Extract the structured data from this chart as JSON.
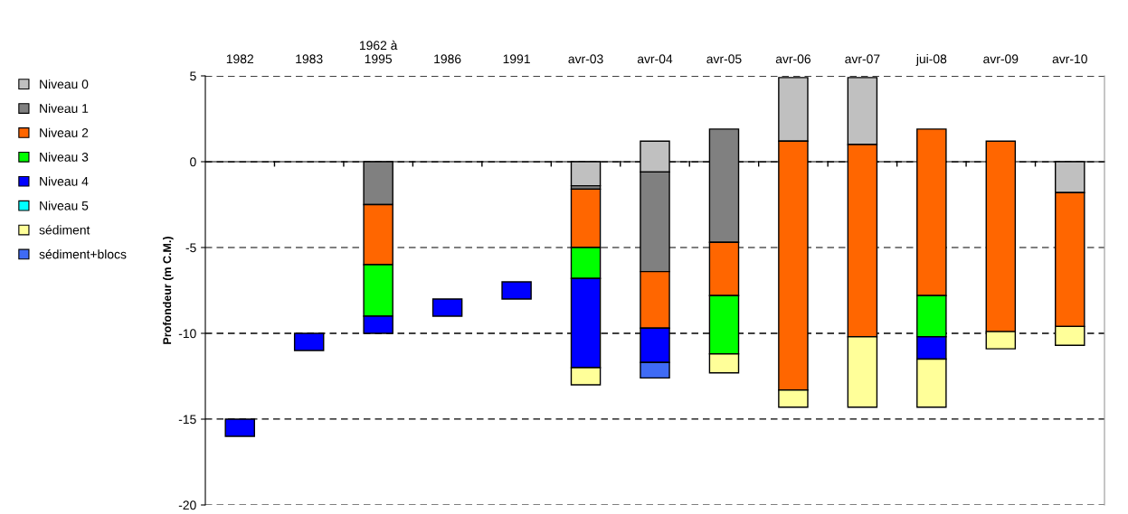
{
  "chart_data": {
    "type": "bar",
    "ylabel": "Profondeur (m C.M.)",
    "categories": [
      "1982",
      "1983",
      "1962 à\n1995",
      "1986",
      "1991",
      "avr-03",
      "avr-04",
      "avr-05",
      "avr-06",
      "avr-07",
      "jui-08",
      "avr-09",
      "avr-10"
    ],
    "series": [
      {
        "name": "Niveau 0",
        "color": "#c0c0c0",
        "base": [
          null,
          null,
          null,
          null,
          null,
          -1.4,
          -0.6,
          null,
          1.2,
          1.0,
          null,
          null,
          -1.8
        ],
        "values": [
          null,
          null,
          null,
          null,
          null,
          1.4,
          1.8,
          null,
          3.7,
          3.9,
          null,
          null,
          1.8
        ]
      },
      {
        "name": "Niveau 1",
        "color": "#808080",
        "base": [
          null,
          null,
          -2.5,
          null,
          null,
          -1.6,
          -6.4,
          -4.7,
          null,
          null,
          null,
          null,
          null
        ],
        "values": [
          null,
          null,
          2.5,
          null,
          null,
          0.2,
          5.8,
          6.6,
          null,
          null,
          null,
          null,
          null
        ]
      },
      {
        "name": "Niveau 2",
        "color": "#ff6600",
        "base": [
          null,
          null,
          -6,
          null,
          null,
          -5,
          -9.7,
          -7.8,
          -13.3,
          -10.2,
          -7.8,
          -9.9,
          -9.6
        ],
        "values": [
          null,
          null,
          3.5,
          null,
          null,
          3.4,
          3.3,
          3.1,
          14.5,
          11.2,
          9.7,
          11.1,
          7.8
        ]
      },
      {
        "name": "Niveau 3",
        "color": "#00ff00",
        "base": [
          null,
          null,
          -9,
          null,
          null,
          -6.8,
          null,
          -11.2,
          null,
          null,
          -10.2,
          null,
          null
        ],
        "values": [
          null,
          null,
          3,
          null,
          null,
          1.8,
          null,
          3.4,
          null,
          null,
          2.4,
          null,
          null
        ]
      },
      {
        "name": "Niveau 4",
        "color": "#0000ff",
        "base": [
          -16,
          -11,
          -10,
          -9,
          -8,
          -12,
          -11.7,
          null,
          null,
          null,
          -11.5,
          null,
          null
        ],
        "values": [
          1,
          1,
          1,
          1,
          1,
          5.2,
          2,
          null,
          null,
          null,
          1.3,
          null,
          null
        ]
      },
      {
        "name": "Niveau 5",
        "color": "#00ffff",
        "base": [
          null,
          null,
          null,
          null,
          null,
          null,
          null,
          null,
          null,
          null,
          null,
          null,
          null
        ],
        "values": [
          null,
          null,
          null,
          null,
          null,
          null,
          null,
          null,
          null,
          null,
          null,
          null,
          null
        ]
      },
      {
        "name": "sédiment",
        "color": "#ffff99",
        "base": [
          null,
          null,
          null,
          null,
          null,
          -13,
          null,
          -12.3,
          -14.3,
          -14.3,
          -14.3,
          -10.9,
          -10.7
        ],
        "values": [
          null,
          null,
          null,
          null,
          null,
          1,
          null,
          1.1,
          1,
          4.1,
          2.8,
          1,
          1.1
        ]
      },
      {
        "name": "sédiment+blocs",
        "color": "#3f6bf5",
        "base": [
          null,
          null,
          null,
          null,
          null,
          null,
          -12.6,
          null,
          null,
          null,
          null,
          null,
          null
        ],
        "values": [
          null,
          null,
          null,
          null,
          null,
          null,
          0.9,
          null,
          null,
          null,
          null,
          null,
          null
        ]
      }
    ],
    "ylim": [
      -20,
      5
    ],
    "yticks": [
      -20,
      -15,
      -10,
      -5,
      0,
      5
    ],
    "grid": "y",
    "line_style": "dashed",
    "legend": "left"
  }
}
